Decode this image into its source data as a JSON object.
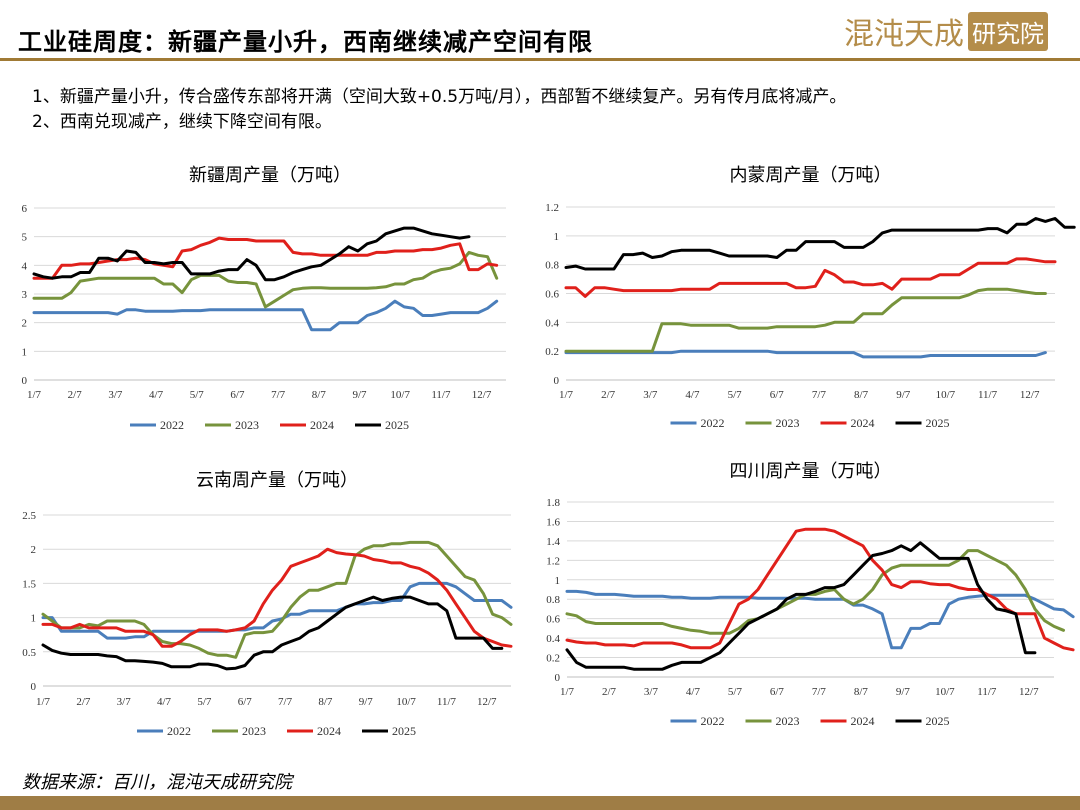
{
  "header": {
    "title": "工业硅周度：新疆产量小升，西南继续减产空间有限",
    "logo_text": "混沌天成",
    "logo_seal": "研究院"
  },
  "notes": [
    "1、新疆产量小升，传合盛传东部将开满（空间大致+0.5万吨/月），西部暂不继续复产。另有传月底将减产。",
    "2、西南兑现减产，继续下降空间有限。"
  ],
  "source": "数据来源：百川，混沌天成研究院",
  "colors": {
    "2022": "#4a7ebb",
    "2023": "#77933c",
    "2024": "#e0201b",
    "2025": "#000000",
    "brand": "#a07a35"
  },
  "chart_data": [
    {
      "id": "xinjiang",
      "type": "line",
      "title": "新疆周产量（万吨）",
      "x_labels": [
        "1/7",
        "2/7",
        "3/7",
        "4/7",
        "5/7",
        "6/7",
        "7/7",
        "8/7",
        "9/7",
        "10/7",
        "11/7",
        "12/7"
      ],
      "y_ticks": [
        "0",
        "1",
        "2",
        "3",
        "4",
        "5",
        "6"
      ],
      "ylim": [
        0,
        6
      ],
      "series": [
        {
          "name": "2022",
          "values": [
            2.35,
            2.35,
            2.35,
            2.35,
            2.35,
            2.35,
            2.35,
            2.35,
            2.35,
            2.3,
            2.45,
            2.45,
            2.4,
            2.4,
            2.4,
            2.4,
            2.42,
            2.42,
            2.42,
            2.45,
            2.45,
            2.45,
            2.45,
            2.45,
            2.45,
            2.45,
            2.45,
            2.45,
            2.45,
            2.45,
            1.75,
            1.75,
            1.75,
            2.0,
            2.0,
            2.0,
            2.25,
            2.35,
            2.5,
            2.75,
            2.55,
            2.5,
            2.25,
            2.25,
            2.3,
            2.35,
            2.35,
            2.35,
            2.35,
            2.5,
            2.75
          ]
        },
        {
          "name": "2023",
          "values": [
            2.85,
            2.85,
            2.85,
            2.85,
            3.05,
            3.45,
            3.5,
            3.55,
            3.55,
            3.55,
            3.55,
            3.55,
            3.55,
            3.55,
            3.35,
            3.35,
            3.05,
            3.5,
            3.65,
            3.65,
            3.65,
            3.45,
            3.4,
            3.4,
            3.35,
            2.55,
            2.75,
            2.95,
            3.15,
            3.2,
            3.22,
            3.22,
            3.2,
            3.2,
            3.2,
            3.2,
            3.2,
            3.22,
            3.25,
            3.35,
            3.35,
            3.5,
            3.55,
            3.75,
            3.85,
            3.9,
            4.05,
            4.45,
            4.35,
            4.3,
            3.55
          ]
        },
        {
          "name": "2024",
          "values": [
            3.55,
            3.55,
            3.55,
            4.0,
            4.0,
            4.05,
            4.05,
            4.1,
            4.15,
            4.2,
            4.2,
            4.25,
            4.2,
            4.05,
            4.0,
            3.95,
            4.5,
            4.55,
            4.7,
            4.8,
            4.95,
            4.9,
            4.9,
            4.9,
            4.85,
            4.85,
            4.85,
            4.85,
            4.45,
            4.4,
            4.4,
            4.35,
            4.35,
            4.35,
            4.35,
            4.35,
            4.35,
            4.45,
            4.45,
            4.5,
            4.5,
            4.5,
            4.55,
            4.55,
            4.6,
            4.7,
            4.75,
            3.85,
            3.85,
            4.05,
            4.0
          ]
        },
        {
          "name": "2025",
          "values": [
            3.7,
            3.6,
            3.55,
            3.6,
            3.6,
            3.75,
            3.75,
            4.25,
            4.25,
            4.15,
            4.5,
            4.45,
            4.1,
            4.1,
            4.05,
            4.1,
            4.1,
            3.7,
            3.7,
            3.7,
            3.8,
            3.85,
            3.85,
            4.2,
            4.0,
            3.5,
            3.5,
            3.6,
            3.75,
            3.85,
            3.95,
            4.0,
            4.2,
            4.4,
            4.65,
            4.5,
            4.75,
            4.85,
            5.1,
            5.2,
            5.3,
            5.3,
            5.2,
            5.1,
            5.05,
            5.0,
            4.95,
            5.0
          ]
        }
      ]
    },
    {
      "id": "neimeng",
      "type": "line",
      "title": "内蒙周产量（万吨）",
      "x_labels": [
        "1/7",
        "2/7",
        "3/7",
        "4/7",
        "5/7",
        "6/7",
        "7/7",
        "8/7",
        "9/7",
        "10/7",
        "11/7",
        "12/7"
      ],
      "y_ticks": [
        "0",
        "0.2",
        "0.4",
        "0.6",
        "0.8",
        "1",
        "1.2"
      ],
      "ylim": [
        0,
        1.2
      ],
      "series": [
        {
          "name": "2022",
          "values": [
            0.19,
            0.19,
            0.19,
            0.19,
            0.19,
            0.19,
            0.19,
            0.19,
            0.19,
            0.19,
            0.19,
            0.19,
            0.2,
            0.2,
            0.2,
            0.2,
            0.2,
            0.2,
            0.2,
            0.2,
            0.2,
            0.2,
            0.19,
            0.19,
            0.19,
            0.19,
            0.19,
            0.19,
            0.19,
            0.19,
            0.19,
            0.16,
            0.16,
            0.16,
            0.16,
            0.16,
            0.16,
            0.16,
            0.17,
            0.17,
            0.17,
            0.17,
            0.17,
            0.17,
            0.17,
            0.17,
            0.17,
            0.17,
            0.17,
            0.17,
            0.19
          ]
        },
        {
          "name": "2023",
          "values": [
            0.2,
            0.2,
            0.2,
            0.2,
            0.2,
            0.2,
            0.2,
            0.2,
            0.2,
            0.2,
            0.39,
            0.39,
            0.39,
            0.38,
            0.38,
            0.38,
            0.38,
            0.38,
            0.36,
            0.36,
            0.36,
            0.36,
            0.37,
            0.37,
            0.37,
            0.37,
            0.37,
            0.38,
            0.4,
            0.4,
            0.4,
            0.46,
            0.46,
            0.46,
            0.52,
            0.57,
            0.57,
            0.57,
            0.57,
            0.57,
            0.57,
            0.57,
            0.59,
            0.62,
            0.63,
            0.63,
            0.63,
            0.62,
            0.61,
            0.6,
            0.6
          ]
        },
        {
          "name": "2024",
          "values": [
            0.64,
            0.64,
            0.58,
            0.64,
            0.64,
            0.63,
            0.62,
            0.62,
            0.62,
            0.62,
            0.62,
            0.62,
            0.63,
            0.63,
            0.63,
            0.63,
            0.67,
            0.67,
            0.67,
            0.67,
            0.67,
            0.67,
            0.67,
            0.67,
            0.64,
            0.64,
            0.65,
            0.76,
            0.73,
            0.68,
            0.68,
            0.66,
            0.66,
            0.67,
            0.63,
            0.7,
            0.7,
            0.7,
            0.7,
            0.73,
            0.73,
            0.73,
            0.77,
            0.81,
            0.81,
            0.81,
            0.81,
            0.84,
            0.84,
            0.83,
            0.82,
            0.82
          ]
        },
        {
          "name": "2025",
          "values": [
            0.78,
            0.79,
            0.77,
            0.77,
            0.77,
            0.77,
            0.87,
            0.87,
            0.88,
            0.85,
            0.86,
            0.89,
            0.9,
            0.9,
            0.9,
            0.9,
            0.88,
            0.86,
            0.86,
            0.86,
            0.86,
            0.86,
            0.85,
            0.9,
            0.9,
            0.96,
            0.96,
            0.96,
            0.96,
            0.92,
            0.92,
            0.92,
            0.96,
            1.02,
            1.04,
            1.04,
            1.04,
            1.04,
            1.04,
            1.04,
            1.04,
            1.04,
            1.04,
            1.04,
            1.05,
            1.05,
            1.02,
            1.08,
            1.08,
            1.12,
            1.1,
            1.12,
            1.06,
            1.06
          ]
        }
      ]
    },
    {
      "id": "yunnan",
      "type": "line",
      "title": "云南周产量（万吨）",
      "x_labels": [
        "1/7",
        "2/7",
        "3/7",
        "4/7",
        "5/7",
        "6/7",
        "7/7",
        "8/7",
        "9/7",
        "10/7",
        "11/7",
        "12/7"
      ],
      "y_ticks": [
        "0",
        "0.5",
        "1",
        "1.5",
        "2",
        "2.5"
      ],
      "ylim": [
        0,
        2.5
      ],
      "series": [
        {
          "name": "2022",
          "values": [
            1.0,
            1.0,
            0.8,
            0.8,
            0.8,
            0.8,
            0.8,
            0.7,
            0.7,
            0.7,
            0.72,
            0.72,
            0.8,
            0.8,
            0.8,
            0.8,
            0.8,
            0.8,
            0.8,
            0.8,
            0.8,
            0.82,
            0.82,
            0.85,
            0.85,
            0.95,
            0.98,
            1.05,
            1.05,
            1.1,
            1.1,
            1.1,
            1.1,
            1.15,
            1.2,
            1.2,
            1.22,
            1.22,
            1.25,
            1.25,
            1.45,
            1.5,
            1.5,
            1.5,
            1.5,
            1.45,
            1.35,
            1.25,
            1.25,
            1.25,
            1.25,
            1.15
          ]
        },
        {
          "name": "2023",
          "values": [
            1.05,
            0.95,
            0.85,
            0.85,
            0.85,
            0.9,
            0.88,
            0.95,
            0.95,
            0.95,
            0.95,
            0.9,
            0.75,
            0.65,
            0.62,
            0.62,
            0.6,
            0.55,
            0.48,
            0.45,
            0.45,
            0.42,
            0.75,
            0.78,
            0.78,
            0.8,
            0.95,
            1.15,
            1.3,
            1.4,
            1.4,
            1.45,
            1.5,
            1.5,
            1.9,
            2.0,
            2.05,
            2.05,
            2.08,
            2.08,
            2.1,
            2.1,
            2.1,
            2.05,
            1.9,
            1.75,
            1.6,
            1.55,
            1.35,
            1.05,
            1.0,
            0.9
          ]
        },
        {
          "name": "2024",
          "values": [
            0.9,
            0.9,
            0.85,
            0.85,
            0.9,
            0.85,
            0.85,
            0.85,
            0.85,
            0.8,
            0.8,
            0.8,
            0.75,
            0.58,
            0.58,
            0.65,
            0.75,
            0.82,
            0.82,
            0.82,
            0.8,
            0.82,
            0.85,
            0.95,
            1.2,
            1.4,
            1.55,
            1.75,
            1.8,
            1.85,
            1.9,
            2.0,
            1.95,
            1.93,
            1.92,
            1.9,
            1.85,
            1.83,
            1.8,
            1.8,
            1.75,
            1.72,
            1.65,
            1.55,
            1.4,
            1.2,
            1.0,
            0.8,
            0.7,
            0.65,
            0.6,
            0.58
          ]
        },
        {
          "name": "2025",
          "values": [
            0.6,
            0.52,
            0.48,
            0.46,
            0.46,
            0.46,
            0.46,
            0.44,
            0.43,
            0.37,
            0.37,
            0.36,
            0.35,
            0.33,
            0.28,
            0.28,
            0.28,
            0.32,
            0.32,
            0.3,
            0.25,
            0.26,
            0.3,
            0.45,
            0.5,
            0.5,
            0.6,
            0.65,
            0.7,
            0.8,
            0.85,
            0.95,
            1.05,
            1.15,
            1.2,
            1.25,
            1.3,
            1.25,
            1.28,
            1.3,
            1.3,
            1.25,
            1.2,
            1.2,
            1.1,
            0.7,
            0.7,
            0.7,
            0.7,
            0.55,
            0.55
          ]
        }
      ]
    },
    {
      "id": "sichuan",
      "type": "line",
      "title": "四川周产量（万吨）",
      "x_labels": [
        "1/7",
        "2/7",
        "3/7",
        "4/7",
        "5/7",
        "6/7",
        "7/7",
        "8/7",
        "9/7",
        "10/7",
        "11/7",
        "12/7"
      ],
      "y_ticks": [
        "0",
        "0.2",
        "0.4",
        "0.6",
        "0.8",
        "1",
        "1.2",
        "1.4",
        "1.6",
        "1.8"
      ],
      "ylim": [
        0,
        1.8
      ],
      "series": [
        {
          "name": "2022",
          "values": [
            0.88,
            0.88,
            0.87,
            0.85,
            0.85,
            0.85,
            0.84,
            0.83,
            0.83,
            0.83,
            0.83,
            0.82,
            0.82,
            0.81,
            0.81,
            0.81,
            0.82,
            0.82,
            0.82,
            0.82,
            0.81,
            0.81,
            0.81,
            0.81,
            0.81,
            0.81,
            0.8,
            0.8,
            0.8,
            0.8,
            0.74,
            0.74,
            0.7,
            0.65,
            0.3,
            0.3,
            0.5,
            0.5,
            0.55,
            0.55,
            0.75,
            0.8,
            0.82,
            0.83,
            0.84,
            0.84,
            0.84,
            0.84,
            0.84,
            0.8,
            0.75,
            0.7,
            0.69,
            0.62
          ]
        },
        {
          "name": "2023",
          "values": [
            0.65,
            0.63,
            0.57,
            0.55,
            0.55,
            0.55,
            0.55,
            0.55,
            0.55,
            0.55,
            0.55,
            0.52,
            0.5,
            0.48,
            0.47,
            0.45,
            0.45,
            0.45,
            0.5,
            0.58,
            0.6,
            0.65,
            0.7,
            0.75,
            0.8,
            0.85,
            0.85,
            0.88,
            0.9,
            0.8,
            0.75,
            0.8,
            0.9,
            1.05,
            1.12,
            1.15,
            1.15,
            1.15,
            1.15,
            1.15,
            1.15,
            1.2,
            1.3,
            1.3,
            1.25,
            1.2,
            1.15,
            1.05,
            0.9,
            0.7,
            0.58,
            0.52,
            0.48
          ]
        },
        {
          "name": "2024",
          "values": [
            0.38,
            0.36,
            0.35,
            0.35,
            0.33,
            0.33,
            0.33,
            0.32,
            0.35,
            0.35,
            0.35,
            0.35,
            0.33,
            0.3,
            0.3,
            0.3,
            0.35,
            0.55,
            0.75,
            0.8,
            0.9,
            1.05,
            1.2,
            1.35,
            1.5,
            1.52,
            1.52,
            1.52,
            1.5,
            1.45,
            1.4,
            1.35,
            1.2,
            1.1,
            0.95,
            0.92,
            0.98,
            0.98,
            0.96,
            0.95,
            0.95,
            0.92,
            0.9,
            0.9,
            0.85,
            0.8,
            0.7,
            0.65,
            0.65,
            0.65,
            0.4,
            0.35,
            0.3,
            0.28
          ]
        },
        {
          "name": "2025",
          "values": [
            0.28,
            0.15,
            0.1,
            0.1,
            0.1,
            0.1,
            0.1,
            0.08,
            0.08,
            0.08,
            0.08,
            0.12,
            0.15,
            0.15,
            0.15,
            0.2,
            0.25,
            0.35,
            0.45,
            0.55,
            0.6,
            0.65,
            0.7,
            0.8,
            0.85,
            0.85,
            0.88,
            0.92,
            0.92,
            0.95,
            1.05,
            1.15,
            1.25,
            1.27,
            1.3,
            1.35,
            1.3,
            1.38,
            1.3,
            1.22,
            1.22,
            1.22,
            1.22,
            0.95,
            0.8,
            0.7,
            0.68,
            0.65,
            0.25,
            0.25
          ]
        }
      ]
    }
  ]
}
